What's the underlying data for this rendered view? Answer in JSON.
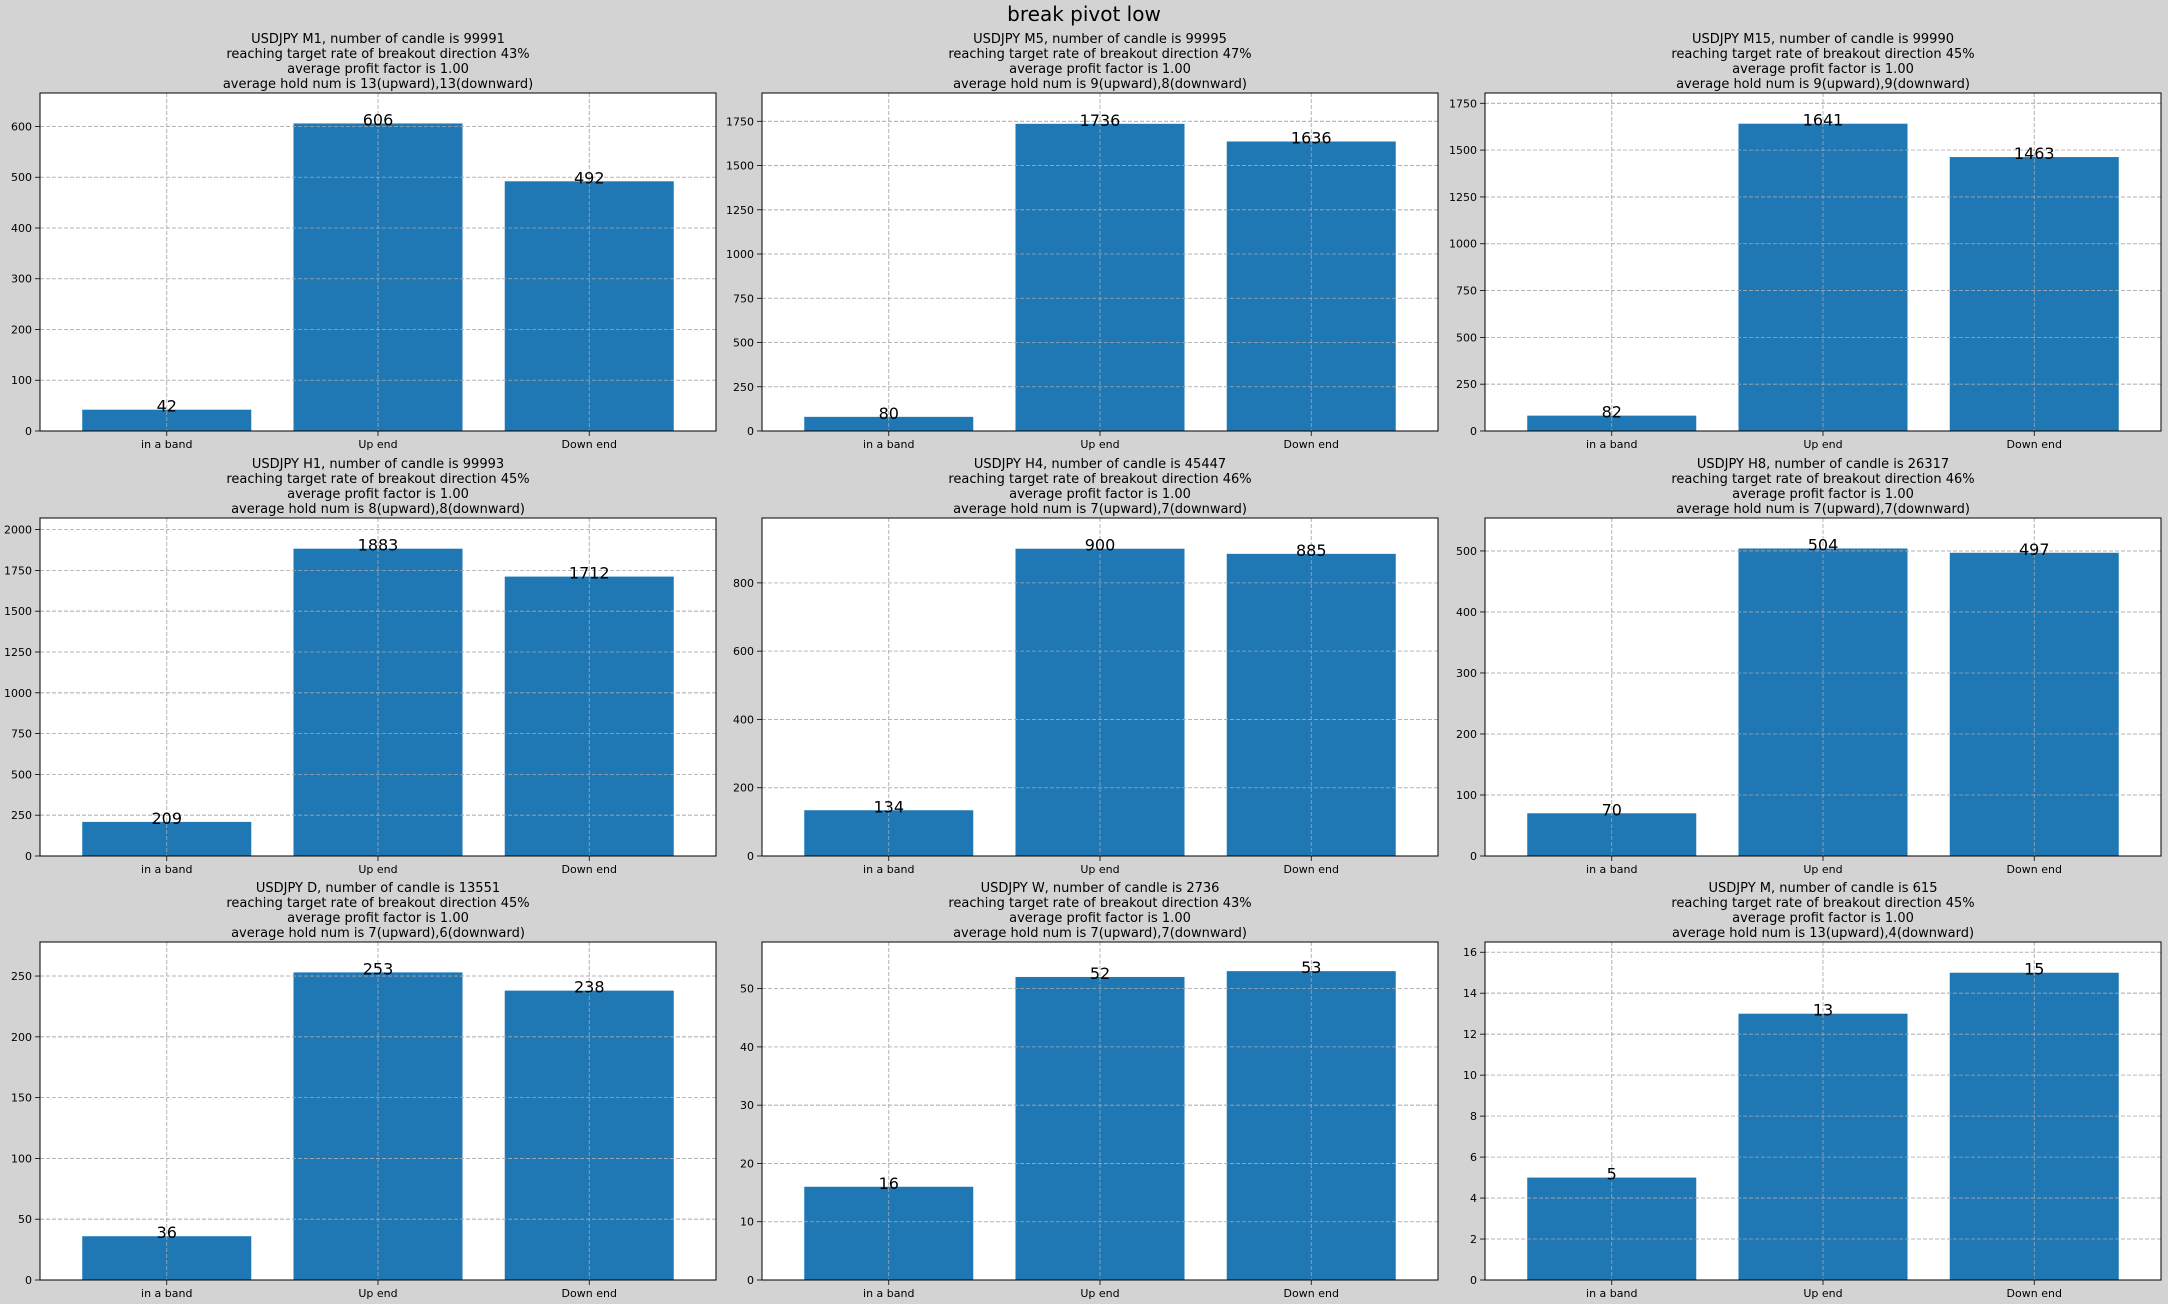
{
  "figure": {
    "title": "break pivot low"
  },
  "style": {
    "bar_color": "#1f77b4",
    "background": "#d3d3d3",
    "axes_background": "#ffffff",
    "grid": true,
    "grid_style": "dashed"
  },
  "chart_data": [
    {
      "type": "bar",
      "title_lines": [
        "USDJPY M1,  number of candle is 99991",
        "reaching target rate of breakout direction 43%",
        "average profit factor is 1.00",
        "average hold num is 13(upward),13(downward)"
      ],
      "categories": [
        "in a band",
        "Up end",
        "Down end"
      ],
      "values": [
        42,
        606,
        492
      ],
      "value_labels": [
        "42",
        "606",
        "492"
      ],
      "ylim": [
        0,
        666
      ],
      "yticks": [
        0,
        100,
        200,
        300,
        400,
        500,
        600
      ],
      "ytick_labels": [
        "0",
        "100",
        "200",
        "300",
        "400",
        "500",
        "600"
      ]
    },
    {
      "type": "bar",
      "title_lines": [
        "USDJPY M5,  number of candle is 99995",
        "reaching target rate of breakout direction 47%",
        "average profit factor is 1.00",
        "average hold num is 9(upward),8(downward)"
      ],
      "categories": [
        "in a band",
        "Up end",
        "Down end"
      ],
      "values": [
        80,
        1736,
        1636
      ],
      "value_labels": [
        "80",
        "1736",
        "1636"
      ],
      "ylim": [
        0,
        1910
      ],
      "yticks": [
        0,
        250,
        500,
        750,
        1000,
        1250,
        1500,
        1750
      ],
      "ytick_labels": [
        "0",
        "250",
        "500",
        "750",
        "1000",
        "1250",
        "1500",
        "1750"
      ]
    },
    {
      "type": "bar",
      "title_lines": [
        "USDJPY M15,  number of candle is 99990",
        "reaching target rate of breakout direction 45%",
        "average profit factor is 1.00",
        "average hold num is 9(upward),9(downward)"
      ],
      "categories": [
        "in a band",
        "Up end",
        "Down end"
      ],
      "values": [
        82,
        1641,
        1463
      ],
      "value_labels": [
        "82",
        "1641",
        "1463"
      ],
      "ylim": [
        0,
        1805
      ],
      "yticks": [
        0,
        250,
        500,
        750,
        1000,
        1250,
        1500,
        1750
      ],
      "ytick_labels": [
        "0",
        "250",
        "500",
        "750",
        "1000",
        "1250",
        "1500",
        "1750"
      ]
    },
    {
      "type": "bar",
      "title_lines": [
        "USDJPY H1,  number of candle is 99993",
        "reaching target rate of breakout direction 45%",
        "average profit factor is 1.00",
        "average hold num is 8(upward),8(downward)"
      ],
      "categories": [
        "in a band",
        "Up end",
        "Down end"
      ],
      "values": [
        209,
        1883,
        1712
      ],
      "value_labels": [
        "209",
        "1883",
        "1712"
      ],
      "ylim": [
        0,
        2071
      ],
      "yticks": [
        0,
        250,
        500,
        750,
        1000,
        1250,
        1500,
        1750,
        2000
      ],
      "ytick_labels": [
        "0",
        "250",
        "500",
        "750",
        "1000",
        "1250",
        "1500",
        "1750",
        "2000"
      ]
    },
    {
      "type": "bar",
      "title_lines": [
        "USDJPY H4,  number of candle is 45447",
        "reaching target rate of breakout direction 46%",
        "average profit factor is 1.00",
        "average hold num is 7(upward),7(downward)"
      ],
      "categories": [
        "in a band",
        "Up end",
        "Down end"
      ],
      "values": [
        134,
        900,
        885
      ],
      "value_labels": [
        "134",
        "900",
        "885"
      ],
      "ylim": [
        0,
        990
      ],
      "yticks": [
        0,
        200,
        400,
        600,
        800
      ],
      "ytick_labels": [
        "0",
        "200",
        "400",
        "600",
        "800"
      ]
    },
    {
      "type": "bar",
      "title_lines": [
        "USDJPY H8,  number of candle is 26317",
        "reaching target rate of breakout direction 46%",
        "average profit factor is 1.00",
        "average hold num is 7(upward),7(downward)"
      ],
      "categories": [
        "in a band",
        "Up end",
        "Down end"
      ],
      "values": [
        70,
        504,
        497
      ],
      "value_labels": [
        "70",
        "504",
        "497"
      ],
      "ylim": [
        0,
        554
      ],
      "yticks": [
        0,
        100,
        200,
        300,
        400,
        500
      ],
      "ytick_labels": [
        "0",
        "100",
        "200",
        "300",
        "400",
        "500"
      ]
    },
    {
      "type": "bar",
      "title_lines": [
        "USDJPY D,  number of candle is 13551",
        "reaching target rate of breakout direction 45%",
        "average profit factor is 1.00",
        "average hold num is 7(upward),6(downward)"
      ],
      "categories": [
        "in a band",
        "Up end",
        "Down end"
      ],
      "values": [
        36,
        253,
        238
      ],
      "value_labels": [
        "36",
        "253",
        "238"
      ],
      "ylim": [
        0,
        278
      ],
      "yticks": [
        0,
        50,
        100,
        150,
        200,
        250
      ],
      "ytick_labels": [
        "0",
        "50",
        "100",
        "150",
        "200",
        "250"
      ]
    },
    {
      "type": "bar",
      "title_lines": [
        "USDJPY W,  number of candle is 2736",
        "reaching target rate of breakout direction 43%",
        "average profit factor is 1.00",
        "average hold num is 7(upward),7(downward)"
      ],
      "categories": [
        "in a band",
        "Up end",
        "Down end"
      ],
      "values": [
        16,
        52,
        53
      ],
      "value_labels": [
        "16",
        "52",
        "53"
      ],
      "ylim": [
        0,
        58
      ],
      "yticks": [
        0,
        10,
        20,
        30,
        40,
        50
      ],
      "ytick_labels": [
        "0",
        "10",
        "20",
        "30",
        "40",
        "50"
      ]
    },
    {
      "type": "bar",
      "title_lines": [
        "USDJPY M,  number of candle is 615",
        "reaching target rate of breakout direction 45%",
        "average profit factor is 1.00",
        "average hold num is 13(upward),4(downward)"
      ],
      "categories": [
        "in a band",
        "Up end",
        "Down end"
      ],
      "values": [
        5,
        13,
        15
      ],
      "value_labels": [
        "5",
        "13",
        "15"
      ],
      "ylim": [
        0,
        16.5
      ],
      "yticks": [
        0,
        2,
        4,
        6,
        8,
        10,
        12,
        14,
        16
      ],
      "ytick_labels": [
        "0",
        "2",
        "4",
        "6",
        "8",
        "10",
        "12",
        "14",
        "16"
      ]
    }
  ]
}
